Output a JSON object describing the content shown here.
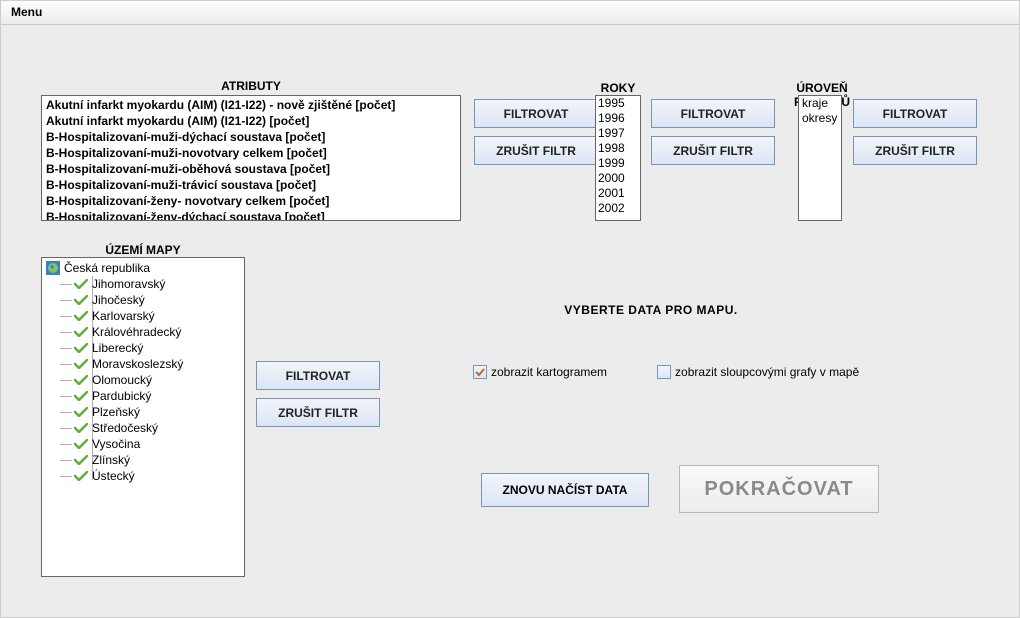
{
  "menu": {
    "label": "Menu"
  },
  "sections": {
    "atributy": {
      "title": "ATRIBUTY",
      "items": [
        "Akutní infarkt myokardu (AIM) (I21-I22) - nově zjištěné [počet]",
        "Akutní infarkt myokardu (AIM) (I21-I22) [počet]",
        "B-Hospitalizovaní-muži-dýchací soustava [počet]",
        "B-Hospitalizovaní-muži-novotvary celkem [počet]",
        "B-Hospitalizovaní-muži-oběhová soustava [počet]",
        "B-Hospitalizovaní-muži-trávicí soustava [počet]",
        "B-Hospitalizovaní-ženy- novotvary celkem [počet]",
        "B-Hospitalizovaní-ženy-dýchací soustava [počet]"
      ]
    },
    "roky": {
      "title": "ROKY",
      "items": [
        "1995",
        "1996",
        "1997",
        "1998",
        "1999",
        "2000",
        "2001",
        "2002"
      ]
    },
    "regionu": {
      "title": "ÚROVEŇ REGIONŮ",
      "items": [
        "kraje",
        "okresy"
      ]
    },
    "uzemi": {
      "title": "ÚZEMÍ MAPY",
      "root": "Česká republika",
      "children": [
        "Jihomoravský",
        "Jihočeský",
        "Karlovarský",
        "Královéhradecký",
        "Liberecký",
        "Moravskoslezský",
        "Olomoucký",
        "Pardubický",
        "Plzeňský",
        "Středočeský",
        "Vysočina",
        "Zlínský",
        "Ústecký"
      ]
    }
  },
  "buttons": {
    "filter": "FILTROVAT",
    "clear": "ZRUŠIT FILTR",
    "reload": "ZNOVU NAČÍST DATA",
    "continue": "POKRAČOVAT"
  },
  "center_text": "VYBERTE DATA PRO MAPU.",
  "checkboxes": {
    "kartogram": {
      "label": "zobrazit kartogramem",
      "checked": true
    },
    "sloupce": {
      "label": "zobrazit sloupcovými grafy v mapě",
      "checked": false
    }
  },
  "colors": {
    "bg": "#ececec",
    "btn_border": "#7a93b6",
    "check_green": "#5fb03a"
  }
}
